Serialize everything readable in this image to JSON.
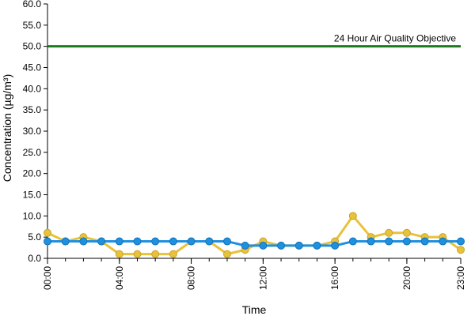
{
  "chart_data": {
    "type": "line",
    "xlabel": "Time",
    "ylabel": "Concentration (µg/m³)",
    "x_hours": [
      0,
      1,
      2,
      3,
      4,
      5,
      6,
      7,
      8,
      9,
      10,
      11,
      12,
      13,
      14,
      15,
      16,
      17,
      18,
      19,
      20,
      21,
      22,
      23
    ],
    "x_tick_labels": [
      "00:00",
      "04:00",
      "08:00",
      "12:00",
      "16:00",
      "20:00",
      "23:00"
    ],
    "x_tick_hours": [
      0,
      4,
      8,
      12,
      16,
      20,
      23
    ],
    "ylim": [
      0,
      60
    ],
    "y_ticks": [
      "0.0",
      "5.0",
      "10.0",
      "15.0",
      "20.0",
      "25.0",
      "30.0",
      "35.0",
      "40.0",
      "45.0",
      "50.0",
      "55.0",
      "60.0"
    ],
    "grid": false,
    "reference_line": {
      "value": 50,
      "label": "24 Hour Air Quality Objective",
      "color": "#1e7a1e"
    },
    "series": [
      {
        "color": "#e8c23a",
        "values": [
          6,
          4,
          5,
          4,
          1,
          1,
          1,
          1,
          4,
          4,
          1,
          2,
          4,
          3,
          3,
          3,
          4,
          10,
          5,
          6,
          6,
          5,
          5,
          2
        ]
      },
      {
        "color": "#1e90e0",
        "values": [
          4,
          4,
          4,
          4,
          4,
          4,
          4,
          4,
          4,
          4,
          4,
          3,
          3,
          3,
          3,
          3,
          3,
          4,
          4,
          4,
          4,
          4,
          4,
          4
        ]
      }
    ]
  }
}
